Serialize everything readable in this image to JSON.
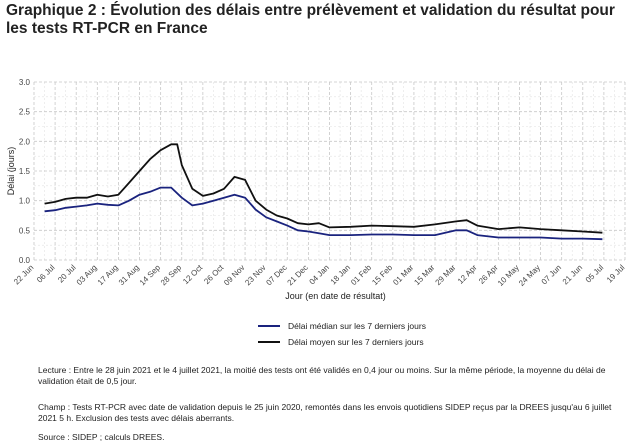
{
  "title": "Graphique 2 : Évolution des délais entre prélèvement et validation du résultat pour les tests RT-PCR en France",
  "chart_data": {
    "type": "line",
    "xlabel": "Jour (en date de résultat)",
    "ylabel": "Délai (jours)",
    "ylim": [
      0,
      3
    ],
    "yticks": [
      "0.0",
      "0.5",
      "1.0",
      "1.5",
      "2.0",
      "2.5",
      "3.0"
    ],
    "x_ticks": [
      "22 Jun",
      "06 Jul",
      "20 Jul",
      "03 Aug",
      "17 Aug",
      "31 Aug",
      "14 Sep",
      "28 Sep",
      "12 Oct",
      "26 Oct",
      "09 Nov",
      "23 Nov",
      "07 Dec",
      "21 Dec",
      "04 Jan",
      "18 Jan",
      "01 Feb",
      "15 Feb",
      "01 Mar",
      "15 Mar",
      "29 Mar",
      "12 Apr",
      "26 Apr",
      "10 May",
      "24 May",
      "07 Jun",
      "21 Jun",
      "05 Jul",
      "19 Jul"
    ],
    "x_start": "2020-06-22",
    "grid": true,
    "legend_position": "bottom",
    "series": [
      {
        "name": "Délai médian sur les 7 derniers jours",
        "color": "#1a237e",
        "points": [
          [
            "2020-06-29",
            0.82
          ],
          [
            "2020-07-06",
            0.84
          ],
          [
            "2020-07-13",
            0.88
          ],
          [
            "2020-07-20",
            0.9
          ],
          [
            "2020-07-27",
            0.92
          ],
          [
            "2020-08-03",
            0.95
          ],
          [
            "2020-08-10",
            0.93
          ],
          [
            "2020-08-17",
            0.92
          ],
          [
            "2020-08-24",
            1.0
          ],
          [
            "2020-08-31",
            1.1
          ],
          [
            "2020-09-07",
            1.15
          ],
          [
            "2020-09-14",
            1.22
          ],
          [
            "2020-09-21",
            1.22
          ],
          [
            "2020-09-28",
            1.05
          ],
          [
            "2020-10-05",
            0.92
          ],
          [
            "2020-10-12",
            0.95
          ],
          [
            "2020-10-19",
            1.0
          ],
          [
            "2020-10-26",
            1.05
          ],
          [
            "2020-11-02",
            1.1
          ],
          [
            "2020-11-09",
            1.05
          ],
          [
            "2020-11-16",
            0.85
          ],
          [
            "2020-11-23",
            0.72
          ],
          [
            "2020-11-30",
            0.65
          ],
          [
            "2020-12-07",
            0.58
          ],
          [
            "2020-12-14",
            0.5
          ],
          [
            "2020-12-21",
            0.48
          ],
          [
            "2020-12-28",
            0.45
          ],
          [
            "2021-01-04",
            0.42
          ],
          [
            "2021-01-18",
            0.42
          ],
          [
            "2021-02-01",
            0.43
          ],
          [
            "2021-02-15",
            0.43
          ],
          [
            "2021-03-01",
            0.42
          ],
          [
            "2021-03-15",
            0.42
          ],
          [
            "2021-03-29",
            0.5
          ],
          [
            "2021-04-05",
            0.5
          ],
          [
            "2021-04-12",
            0.42
          ],
          [
            "2021-04-26",
            0.38
          ],
          [
            "2021-05-10",
            0.38
          ],
          [
            "2021-05-24",
            0.38
          ],
          [
            "2021-06-07",
            0.36
          ],
          [
            "2021-06-21",
            0.36
          ],
          [
            "2021-07-04",
            0.35
          ]
        ]
      },
      {
        "name": "Délai moyen sur les 7 derniers jours",
        "color": "#111111",
        "points": [
          [
            "2020-06-29",
            0.95
          ],
          [
            "2020-07-06",
            0.98
          ],
          [
            "2020-07-13",
            1.03
          ],
          [
            "2020-07-20",
            1.05
          ],
          [
            "2020-07-27",
            1.05
          ],
          [
            "2020-08-03",
            1.1
          ],
          [
            "2020-08-10",
            1.07
          ],
          [
            "2020-08-17",
            1.1
          ],
          [
            "2020-08-24",
            1.3
          ],
          [
            "2020-08-31",
            1.5
          ],
          [
            "2020-09-07",
            1.7
          ],
          [
            "2020-09-14",
            1.85
          ],
          [
            "2020-09-21",
            1.95
          ],
          [
            "2020-09-25",
            1.95
          ],
          [
            "2020-09-28",
            1.6
          ],
          [
            "2020-10-05",
            1.2
          ],
          [
            "2020-10-12",
            1.08
          ],
          [
            "2020-10-19",
            1.12
          ],
          [
            "2020-10-26",
            1.2
          ],
          [
            "2020-11-02",
            1.4
          ],
          [
            "2020-11-09",
            1.35
          ],
          [
            "2020-11-16",
            1.0
          ],
          [
            "2020-11-23",
            0.85
          ],
          [
            "2020-11-30",
            0.75
          ],
          [
            "2020-12-07",
            0.7
          ],
          [
            "2020-12-14",
            0.62
          ],
          [
            "2020-12-21",
            0.6
          ],
          [
            "2020-12-28",
            0.62
          ],
          [
            "2021-01-04",
            0.55
          ],
          [
            "2021-01-18",
            0.56
          ],
          [
            "2021-02-01",
            0.58
          ],
          [
            "2021-02-15",
            0.57
          ],
          [
            "2021-03-01",
            0.56
          ],
          [
            "2021-03-15",
            0.6
          ],
          [
            "2021-03-29",
            0.65
          ],
          [
            "2021-04-05",
            0.67
          ],
          [
            "2021-04-12",
            0.58
          ],
          [
            "2021-04-26",
            0.52
          ],
          [
            "2021-05-10",
            0.55
          ],
          [
            "2021-05-24",
            0.52
          ],
          [
            "2021-06-07",
            0.5
          ],
          [
            "2021-06-21",
            0.48
          ],
          [
            "2021-07-04",
            0.46
          ]
        ]
      }
    ]
  },
  "notes": {
    "lecture": "Lecture : Entre le 28 juin 2021 et le 4 juillet 2021, la moitié des tests ont été validés en 0,4 jour ou moins. Sur la même période, la moyenne du délai de validation était de 0,5 jour.",
    "champ": "Champ : Tests RT-PCR avec date de validation depuis le 25 juin 2020, remontés dans les envois quotidiens SIDEP reçus par la DREES jusqu'au 6 juillet 2021 5 h. Exclusion des tests avec délais aberrants.",
    "source": "Source : SIDEP ; calculs DREES."
  }
}
